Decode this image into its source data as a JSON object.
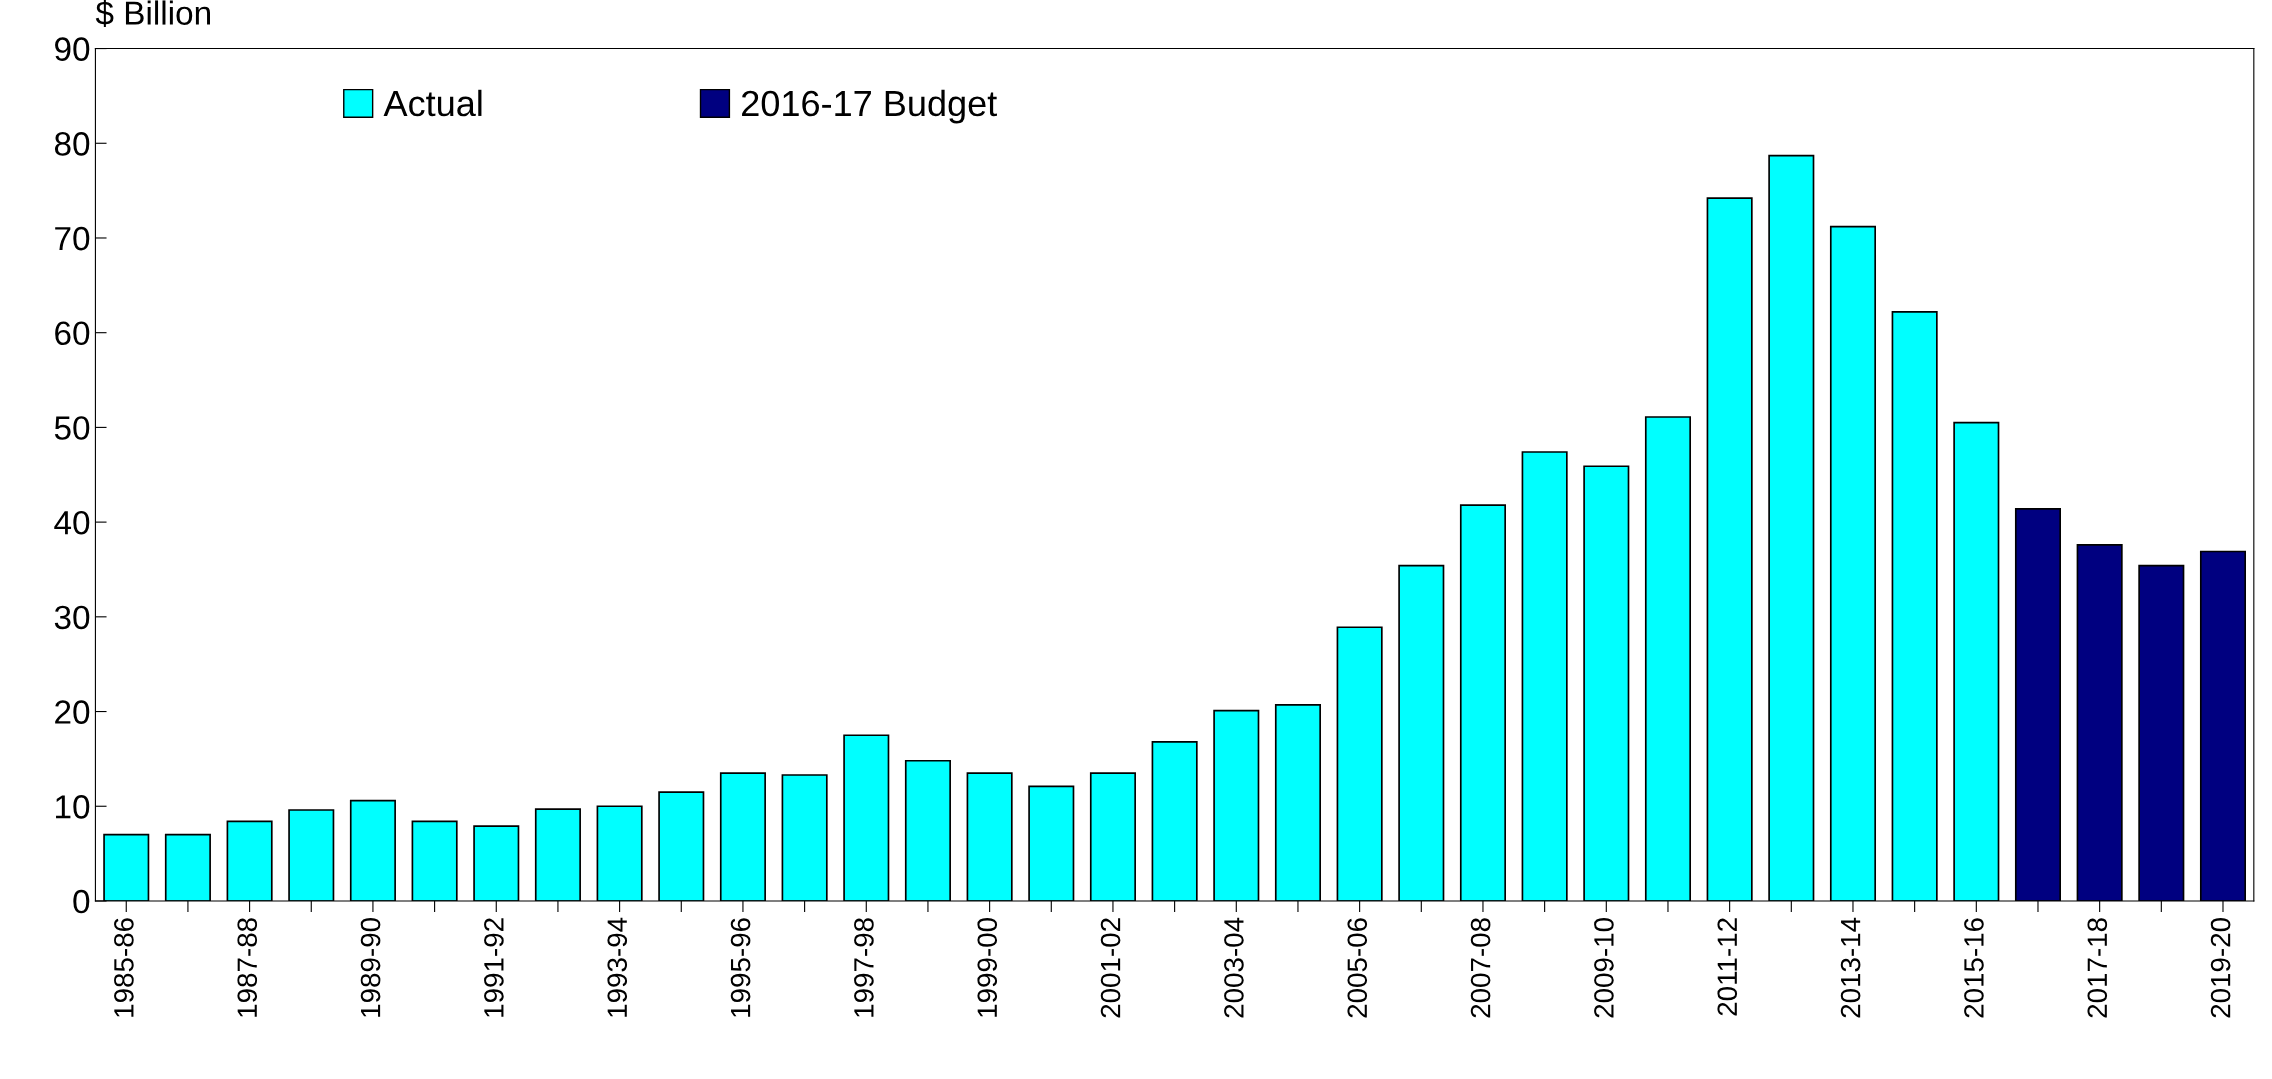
{
  "chart_data": {
    "type": "bar",
    "ylabel": "$ Billion",
    "categories": [
      "1985-86",
      null,
      "1987-88",
      null,
      "1989-90",
      null,
      "1991-92",
      null,
      "1993-94",
      null,
      "1995-96",
      null,
      "1997-98",
      null,
      "1999-00",
      null,
      "2001-02",
      null,
      "2003-04",
      null,
      "2005-06",
      null,
      "2007-08",
      null,
      "2009-10",
      null,
      "2011-12",
      null,
      "2013-14",
      null,
      "2015-16",
      null,
      "2017-18",
      null,
      "2019-20"
    ],
    "series": [
      {
        "name": "Actual",
        "color": "#00ffff",
        "values": [
          7.0,
          7.0,
          8.4,
          9.6,
          10.6,
          8.4,
          7.9,
          9.7,
          10.0,
          11.5,
          13.5,
          13.3,
          17.5,
          14.8,
          13.5,
          12.1,
          13.5,
          16.8,
          20.1,
          20.7,
          28.9,
          35.4,
          41.8,
          47.4,
          45.9,
          51.1,
          74.2,
          78.7,
          71.2,
          62.2,
          50.5,
          null,
          null,
          null,
          null
        ]
      },
      {
        "name": "2016-17 Budget",
        "color": "#000080",
        "values": [
          null,
          null,
          null,
          null,
          null,
          null,
          null,
          null,
          null,
          null,
          null,
          null,
          null,
          null,
          null,
          null,
          null,
          null,
          null,
          null,
          null,
          null,
          null,
          null,
          null,
          null,
          null,
          null,
          null,
          null,
          null,
          41.4,
          37.6,
          35.4,
          36.9
        ]
      }
    ],
    "ylim": [
      0,
      90
    ],
    "yticks": [
      0,
      10,
      20,
      30,
      40,
      50,
      60,
      70,
      80,
      90
    ],
    "grid": false,
    "legend": "top left"
  }
}
